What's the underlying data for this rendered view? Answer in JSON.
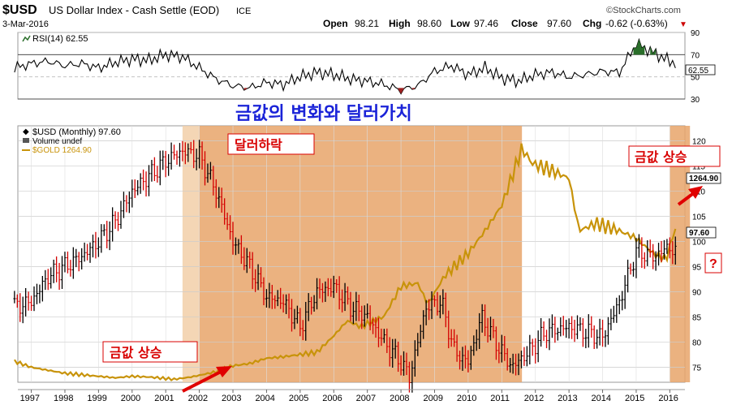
{
  "header": {
    "symbol": "$USD",
    "name": "US Dollar Index - Cash Settle (EOD)",
    "exchange": "ICE",
    "date": "3-Mar-2016",
    "source": "©StockCharts.com",
    "open_label": "Open",
    "open": "98.21",
    "high_label": "High",
    "high": "98.60",
    "low_label": "Low",
    "low": "97.46",
    "close_label": "Close",
    "close": "97.60",
    "chg_label": "Chg",
    "chg": "-0.62 (-0.63%)",
    "chg_arrow": "▼"
  },
  "rsi_panel": {
    "legend": "RSI(14) 62.55",
    "value_tag": "62.55",
    "ticks": [
      "70",
      "50",
      "30"
    ]
  },
  "price_panel": {
    "legend_usd": "$USD (Monthly) 97.60",
    "legend_volume": "Volume undef",
    "legend_gold": "$GOLD 1264.90",
    "usd_tag": "97.60",
    "gold_tag": "1264.90",
    "question_mark": "?"
  },
  "annotations": {
    "title": "금값의 변화와 달러가치",
    "dollar_fall": "달러하락",
    "gold_rise_left": "금값 상승",
    "gold_rise_right": "금값 상승"
  },
  "colors": {
    "shade": "#e8a46a",
    "shade_light": "#f2cfa8",
    "gold": "#c8930a",
    "up": "#000000",
    "down": "#d40000",
    "title": "#1a23d8",
    "label_text": "#d80000",
    "arrow": "#e00000"
  },
  "chart_data": [
    {
      "type": "line",
      "title": "RSI(14)",
      "ylim": [
        30,
        90
      ],
      "yticks": [
        30,
        50,
        70,
        90
      ],
      "x": [
        1996.5,
        1997,
        1997.5,
        1998,
        1998.5,
        1999,
        1999.5,
        2000,
        2000.5,
        2001,
        2001.5,
        2002,
        2002.5,
        2003,
        2003.5,
        2004,
        2004.5,
        2005,
        2005.5,
        2006,
        2006.5,
        2007,
        2007.5,
        2008,
        2008.5,
        2009,
        2009.5,
        2010,
        2010.5,
        2011,
        2011.5,
        2012,
        2012.5,
        2013,
        2013.5,
        2014,
        2014.5,
        2015,
        2015.5,
        2016,
        2016.17
      ],
      "values": [
        58,
        62,
        64,
        60,
        62,
        58,
        63,
        66,
        65,
        70,
        68,
        58,
        48,
        42,
        40,
        45,
        43,
        50,
        54,
        52,
        48,
        46,
        43,
        38,
        42,
        55,
        60,
        52,
        58,
        49,
        46,
        52,
        54,
        50,
        52,
        55,
        54,
        80,
        72,
        64,
        62.55
      ]
    },
    {
      "type": "line",
      "title": "$USD (Monthly)",
      "ylabel": "",
      "ylim": [
        72,
        123
      ],
      "yticks": [
        75,
        80,
        85,
        90,
        95,
        100,
        105,
        110,
        115,
        120
      ],
      "x": [
        1996.5,
        1997,
        1997.5,
        1998,
        1998.5,
        1999,
        1999.5,
        2000,
        2000.5,
        2001,
        2001.5,
        2002,
        2002.5,
        2003,
        2003.5,
        2004,
        2004.5,
        2005,
        2005.5,
        2006,
        2006.5,
        2007,
        2007.5,
        2008,
        2008.25,
        2008.75,
        2009.2,
        2009.6,
        2010,
        2010.4,
        2010.9,
        2011.3,
        2011.8,
        2012.3,
        2013,
        2013.5,
        2014,
        2014.5,
        2015,
        2015.5,
        2016,
        2016.17
      ],
      "values": [
        87,
        88,
        93,
        95,
        97,
        100,
        104,
        110,
        113,
        116,
        118,
        117,
        110,
        100,
        95,
        89,
        88,
        83,
        90,
        91,
        87,
        85,
        80,
        76,
        73,
        87,
        88,
        78,
        76,
        85,
        79,
        75,
        78,
        82,
        83,
        82,
        81,
        88,
        98,
        97,
        99,
        97.6
      ],
      "series": [
        {
          "name": "$USD",
          "values": [
            87,
            88,
            93,
            95,
            97,
            100,
            104,
            110,
            113,
            116,
            118,
            117,
            110,
            100,
            95,
            89,
            88,
            83,
            90,
            91,
            87,
            85,
            80,
            76,
            73,
            87,
            88,
            78,
            76,
            85,
            79,
            75,
            78,
            82,
            83,
            82,
            81,
            88,
            98,
            97,
            99,
            97.6
          ]
        }
      ]
    },
    {
      "type": "line",
      "title": "$GOLD",
      "x": [
        1996.5,
        1997,
        1997.5,
        1998,
        1998.5,
        1999,
        1999.5,
        2000,
        2000.5,
        2001,
        2001.25,
        2001.75,
        2002.5,
        2003,
        2003.5,
        2004,
        2004.5,
        2005,
        2005.5,
        2006,
        2006.4,
        2006.8,
        2007.5,
        2008,
        2008.5,
        2008.8,
        2009.3,
        2010,
        2010.5,
        2011,
        2011.6,
        2011.9,
        2012.5,
        2013,
        2013.3,
        2013.8,
        2014.5,
        2015,
        2015.5,
        2015.9,
        2016,
        2016.17
      ],
      "values": [
        380,
        340,
        320,
        300,
        290,
        280,
        270,
        280,
        275,
        265,
        260,
        275,
        310,
        350,
        365,
        400,
        410,
        425,
        440,
        550,
        650,
        610,
        680,
        880,
        900,
        760,
        950,
        1100,
        1250,
        1420,
        1800,
        1700,
        1650,
        1600,
        1250,
        1300,
        1250,
        1200,
        1100,
        1060,
        1150,
        1264.9
      ],
      "series": [
        {
          "name": "$GOLD",
          "values": [
            380,
            340,
            320,
            300,
            290,
            280,
            270,
            280,
            275,
            265,
            260,
            275,
            310,
            350,
            365,
            400,
            410,
            425,
            440,
            550,
            650,
            610,
            680,
            880,
            900,
            760,
            950,
            1100,
            1250,
            1420,
            1800,
            1700,
            1650,
            1600,
            1250,
            1300,
            1250,
            1200,
            1100,
            1060,
            1150,
            1264.9
          ]
        }
      ]
    }
  ],
  "x_axis": {
    "ticks": [
      "1997",
      "1998",
      "1999",
      "2000",
      "2001",
      "2002",
      "2003",
      "2004",
      "2005",
      "2006",
      "2007",
      "2008",
      "2009",
      "2010",
      "2011",
      "2012",
      "2013",
      "2014",
      "2015",
      "2016"
    ]
  },
  "shaded_periods": [
    {
      "from": 2001.5,
      "to": 2002.0,
      "style": "light"
    },
    {
      "from": 2002.0,
      "to": 2011.6,
      "style": "dark"
    },
    {
      "from": 2016.0,
      "to": 2016.6,
      "style": "dark"
    }
  ]
}
